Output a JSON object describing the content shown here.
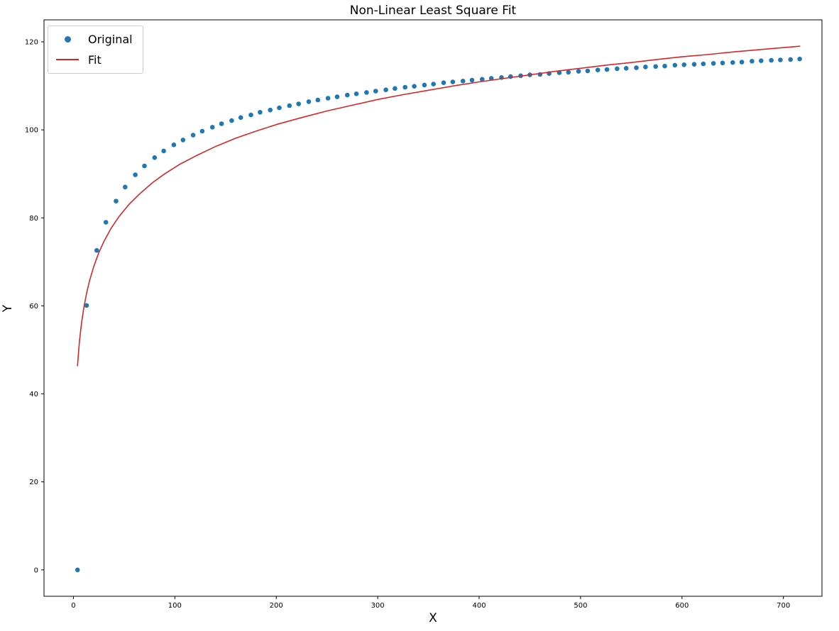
{
  "figure": {
    "background": "#ffffff"
  },
  "chart_data": {
    "type": "scatter",
    "title": "Non-Linear Least Square Fit",
    "xlabel": "X",
    "ylabel": "Y",
    "xlim": [
      -29,
      738
    ],
    "ylim": [
      -6,
      125
    ],
    "xticks": [
      0,
      100,
      200,
      300,
      400,
      500,
      600,
      700
    ],
    "yticks": [
      0,
      20,
      40,
      60,
      80,
      100,
      120
    ],
    "grid": false,
    "legend_position": "upper-left",
    "series": [
      {
        "name": "Original",
        "type": "scatter",
        "color": "#1f77b4",
        "x": [
          4,
          13,
          23,
          32,
          42,
          51,
          61,
          70,
          80,
          89,
          99,
          108,
          118,
          127,
          137,
          146,
          156,
          165,
          175,
          184,
          194,
          203,
          213,
          222,
          232,
          241,
          251,
          260,
          270,
          279,
          289,
          298,
          308,
          317,
          327,
          336,
          346,
          355,
          365,
          374,
          384,
          393,
          403,
          412,
          422,
          431,
          441,
          450,
          460,
          469,
          479,
          488,
          498,
          507,
          517,
          526,
          536,
          545,
          555,
          564,
          574,
          583,
          593,
          602,
          612,
          621,
          631,
          640,
          650,
          659,
          669,
          678,
          688,
          697,
          707,
          716
        ],
        "y": [
          0,
          60.1,
          72.6,
          79.0,
          83.8,
          87.0,
          89.8,
          91.8,
          93.7,
          95.2,
          96.6,
          97.7,
          98.8,
          99.7,
          100.6,
          101.4,
          102.1,
          102.8,
          103.4,
          104.0,
          104.5,
          105.0,
          105.5,
          105.9,
          106.4,
          106.8,
          107.2,
          107.5,
          107.9,
          108.2,
          108.5,
          108.8,
          109.1,
          109.4,
          109.7,
          109.9,
          110.2,
          110.4,
          110.7,
          110.9,
          111.1,
          111.3,
          111.5,
          111.7,
          111.9,
          112.1,
          112.3,
          112.5,
          112.6,
          112.8,
          113.0,
          113.1,
          113.3,
          113.4,
          113.6,
          113.7,
          113.9,
          114.0,
          114.1,
          114.3,
          114.4,
          114.5,
          114.7,
          114.8,
          114.9,
          115.0,
          115.1,
          115.2,
          115.3,
          115.4,
          115.6,
          115.7,
          115.8,
          115.9,
          116.0,
          116.1
        ]
      },
      {
        "name": "Fit",
        "type": "line",
        "color": "#d62728",
        "x": [
          4,
          6,
          8,
          10,
          13,
          16,
          20,
          25,
          30,
          37,
          45,
          55,
          65,
          78,
          90,
          105,
          120,
          140,
          160,
          180,
          200,
          225,
          250,
          275,
          300,
          325,
          350,
          375,
          400,
          425,
          450,
          475,
          500,
          525,
          550,
          575,
          600,
          625,
          650,
          680,
          716
        ],
        "y": [
          46.4,
          52.1,
          56.1,
          59.2,
          62.9,
          65.8,
          68.9,
          72.1,
          74.6,
          77.6,
          80.3,
          83.1,
          85.4,
          88.0,
          90.0,
          92.2,
          94.0,
          96.2,
          98.1,
          99.7,
          101.2,
          102.8,
          104.3,
          105.6,
          106.9,
          108.0,
          109.0,
          110.0,
          110.9,
          111.7,
          112.5,
          113.3,
          114.0,
          114.7,
          115.3,
          116.0,
          116.6,
          117.1,
          117.7,
          118.3,
          119.0
        ]
      }
    ],
    "axis_color": "#000000",
    "tick_label_color": "#000000"
  }
}
